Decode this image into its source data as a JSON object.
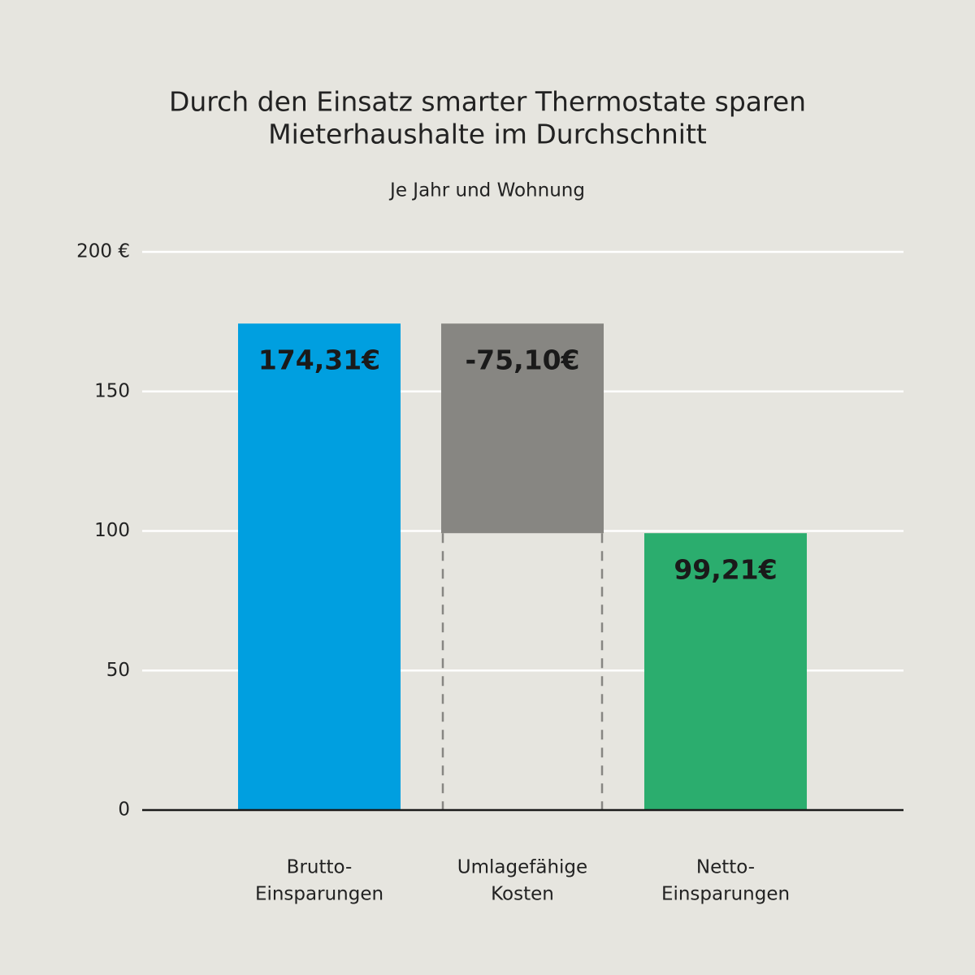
{
  "chart_data": {
    "type": "waterfall",
    "title": [
      "Durch den Einsatz smarter Thermostate sparen",
      "Mieterhaushalte im Durchschnitt"
    ],
    "subtitle": "Je Jahr und Wohnung",
    "categories": [
      [
        "Brutto-",
        "Einsparungen"
      ],
      [
        "Umlagefähige",
        "Kosten"
      ],
      [
        "Netto-",
        "Einsparungen"
      ]
    ],
    "values": [
      174.31,
      -75.1,
      99.21
    ],
    "value_labels": [
      "174,31€",
      "-75,10€",
      "99,21€"
    ],
    "measure": [
      "absolute",
      "relative",
      "total"
    ],
    "colors": [
      "#009fe0",
      "#878682",
      "#2bad6e"
    ],
    "ylim": [
      0,
      200
    ],
    "yticks": [
      0,
      50,
      100,
      150,
      {
        "value": 200,
        "label": "200 €"
      }
    ],
    "grid": true
  }
}
